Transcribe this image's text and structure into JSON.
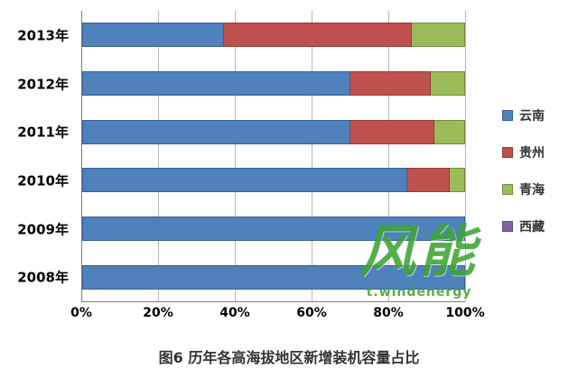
{
  "caption": "图6 历年各高海拔地区新增装机容量占比",
  "watermark": {
    "logo": "风能",
    "url": "t.windenergy"
  },
  "chart_data": {
    "type": "bar",
    "orientation": "horizontal",
    "stacked": true,
    "stack_mode": "percent",
    "title": "",
    "xlabel": "",
    "ylabel": "",
    "xlim": [
      0,
      100
    ],
    "x_ticks": [
      "0%",
      "20%",
      "40%",
      "60%",
      "80%",
      "100%"
    ],
    "grid": true,
    "legend_position": "right",
    "categories": [
      "2013年",
      "2012年",
      "2011年",
      "2010年",
      "2009年",
      "2008年"
    ],
    "series": [
      {
        "name": "云南",
        "color": "#4F81BD",
        "values": [
          37,
          70,
          70,
          85,
          100,
          100
        ]
      },
      {
        "name": "贵州",
        "color": "#C0504D",
        "values": [
          49,
          21,
          22,
          11,
          0,
          0
        ]
      },
      {
        "name": "青海",
        "color": "#9BBB59",
        "values": [
          14,
          9,
          8,
          4,
          0,
          0
        ]
      },
      {
        "name": "西藏",
        "color": "#8064A2",
        "values": [
          0,
          0,
          0,
          0,
          0,
          0
        ]
      }
    ]
  }
}
